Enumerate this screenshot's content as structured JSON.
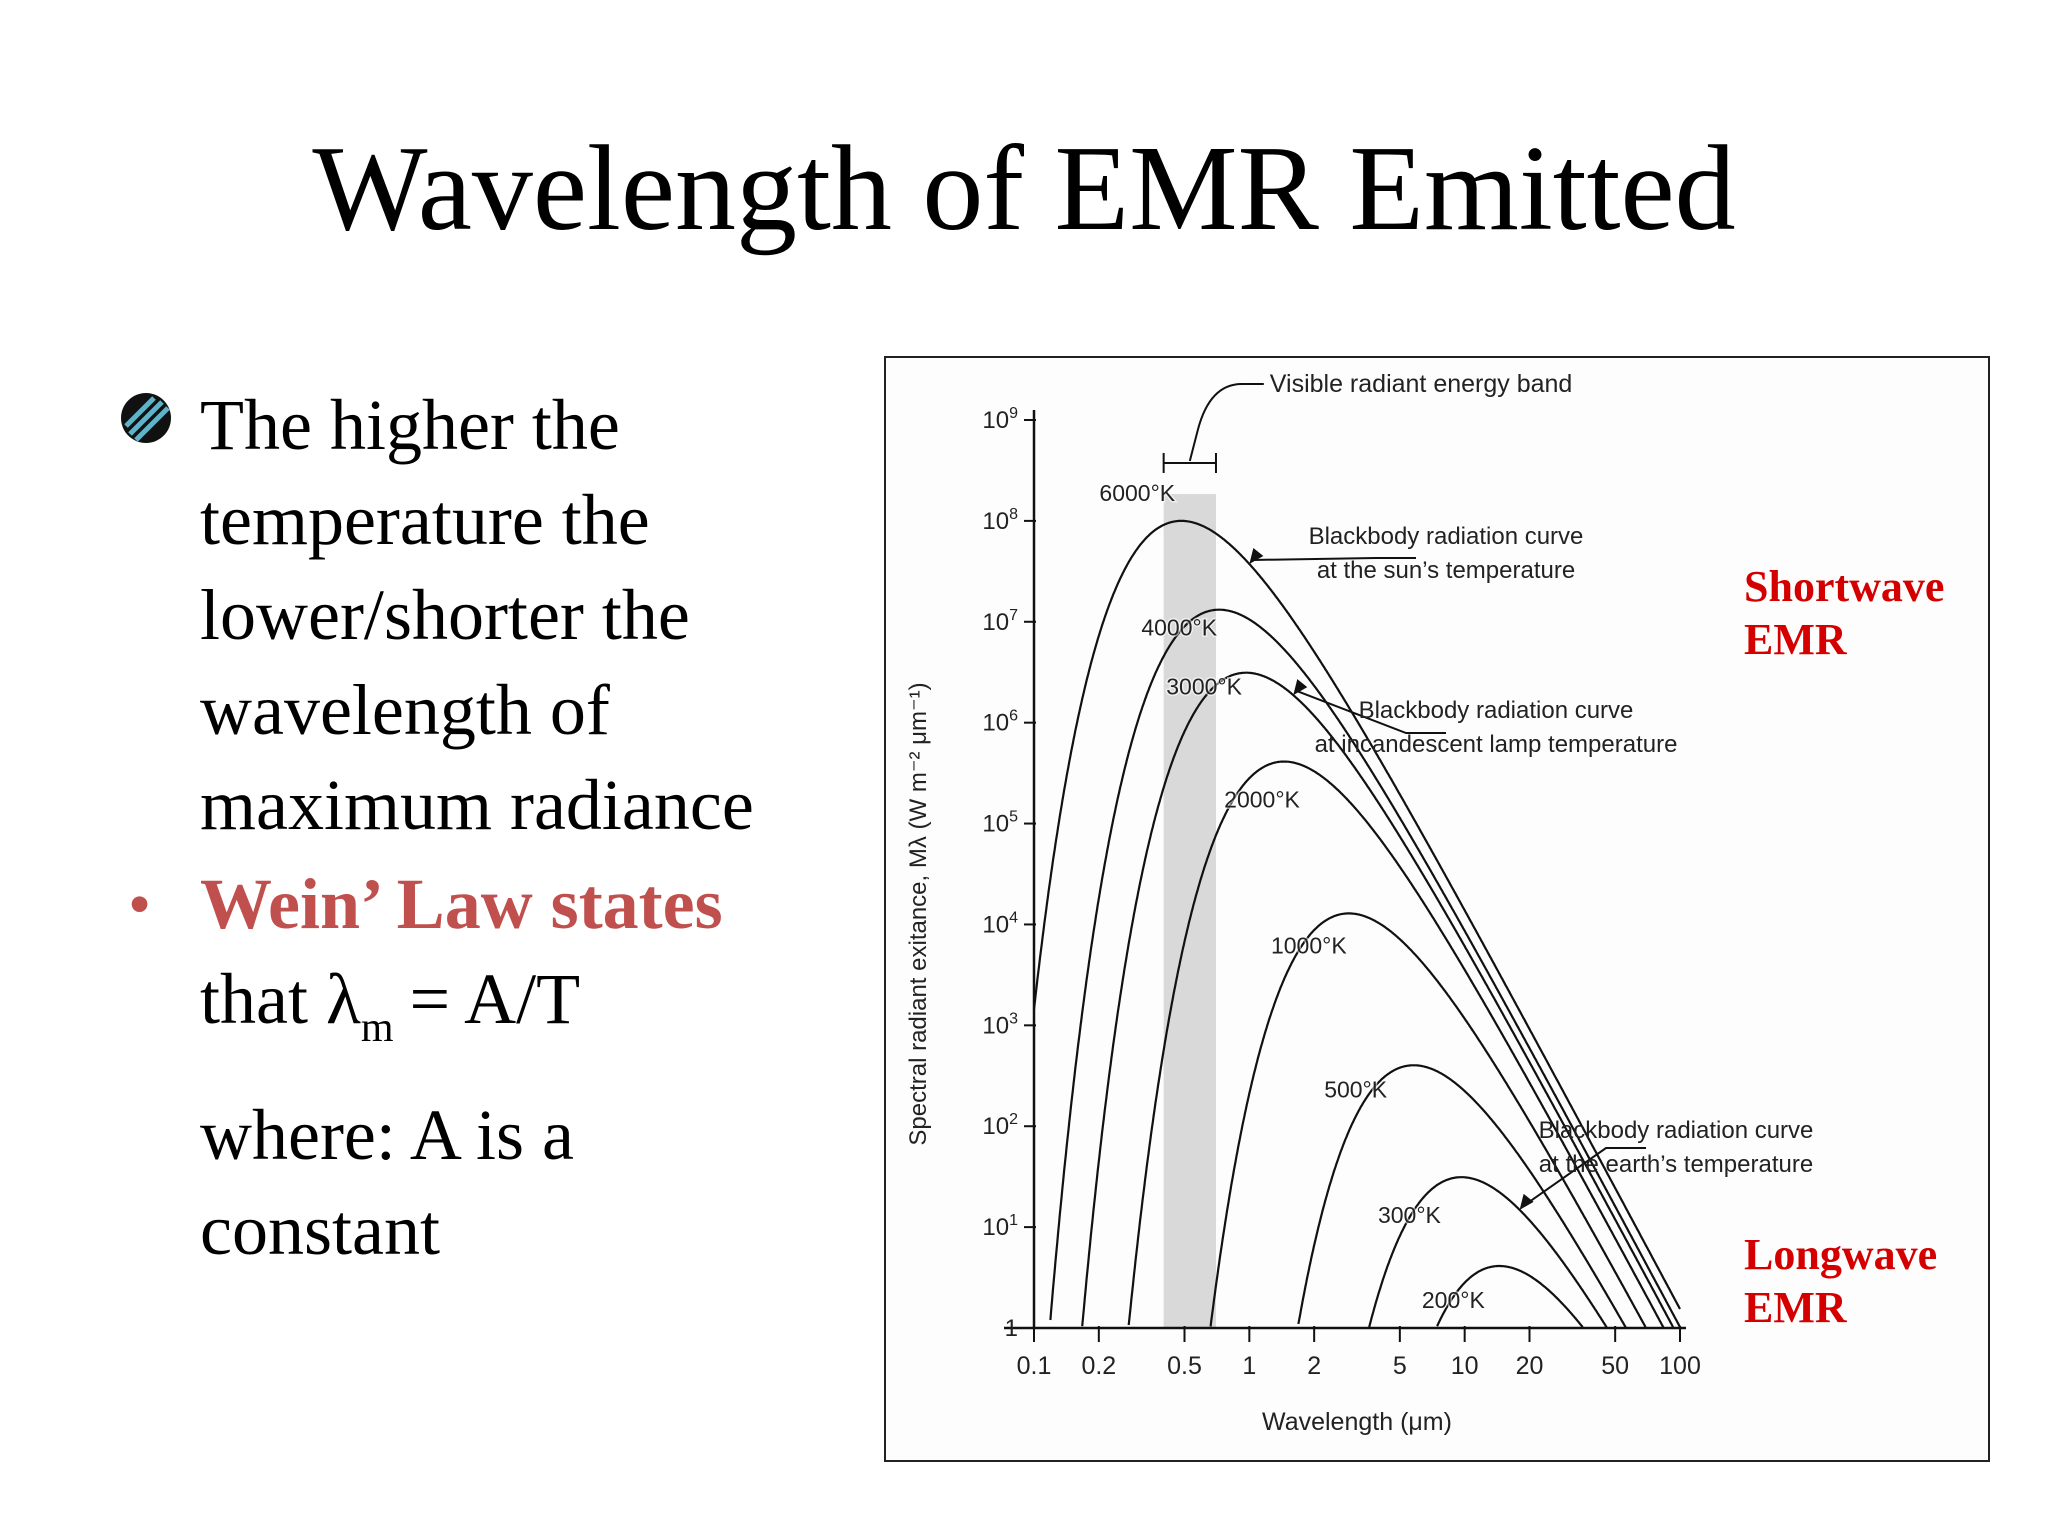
{
  "slide": {
    "title": "Wavelength of EMR Emitted",
    "bullet1_lines": [
      "The higher the",
      "temperature the",
      "lower/shorter the",
      "wavelength of",
      "maximum radiance"
    ],
    "bullet2_red": "Wein’ Law states",
    "bullet2_that": "that λ",
    "bullet2_sub": "m",
    "bullet2_rest": " = A/T",
    "bullet3_lines": [
      "where: A is a",
      "constant"
    ]
  },
  "labels": {
    "shortwave": [
      "Shortwave",
      "EMR"
    ],
    "longwave": [
      "Longwave",
      "EMR"
    ]
  },
  "colors": {
    "accent_red": "#c0504d",
    "label_red": "#d40000",
    "band_gray": "#d9d9d9"
  },
  "chart_data": {
    "type": "line",
    "xscale": "log",
    "yscale": "log",
    "xlabel": "Wavelength (μm)",
    "ylabel": "Spectral radiant exitance, Mλ (W m⁻² μm⁻¹)",
    "xlim": [
      0.1,
      100
    ],
    "ylim": [
      1,
      1000000000
    ],
    "x_ticks": [
      0.1,
      0.2,
      0.5,
      1,
      2,
      5,
      10,
      20,
      50,
      100
    ],
    "x_tick_labels": [
      "0.1",
      "0.2",
      "0.5",
      "1",
      "2",
      "5",
      "10",
      "20",
      "50",
      "100"
    ],
    "y_tick_labels": [
      {
        "base": "1",
        "exp": ""
      },
      {
        "base": "10",
        "exp": "1"
      },
      {
        "base": "10",
        "exp": "2"
      },
      {
        "base": "10",
        "exp": "3"
      },
      {
        "base": "10",
        "exp": "4"
      },
      {
        "base": "10",
        "exp": "5"
      },
      {
        "base": "10",
        "exp": "6"
      },
      {
        "base": "10",
        "exp": "7"
      },
      {
        "base": "10",
        "exp": "8"
      },
      {
        "base": "10",
        "exp": "9"
      }
    ],
    "visible_band": {
      "from": 0.4,
      "to": 0.7,
      "label": "Visible radiant energy band"
    },
    "series": [
      {
        "name": "6000°K",
        "temperature": 6000
      },
      {
        "name": "4000°K",
        "temperature": 4000
      },
      {
        "name": "3000°K",
        "temperature": 3000
      },
      {
        "name": "2000°K",
        "temperature": 2000
      },
      {
        "name": "1000°K",
        "temperature": 1000
      },
      {
        "name": "500°K",
        "temperature": 500
      },
      {
        "name": "300°K",
        "temperature": 300
      },
      {
        "name": "200°K",
        "temperature": 200
      }
    ],
    "annotations": [
      {
        "lines": [
          "Blackbody radiation curve",
          "at the sun’s temperature"
        ]
      },
      {
        "lines": [
          "Blackbody radiation curve",
          "at incandescent lamp temperature"
        ]
      },
      {
        "lines": [
          "Blackbody radiation curve",
          "at the earth’s temperature"
        ]
      }
    ]
  }
}
